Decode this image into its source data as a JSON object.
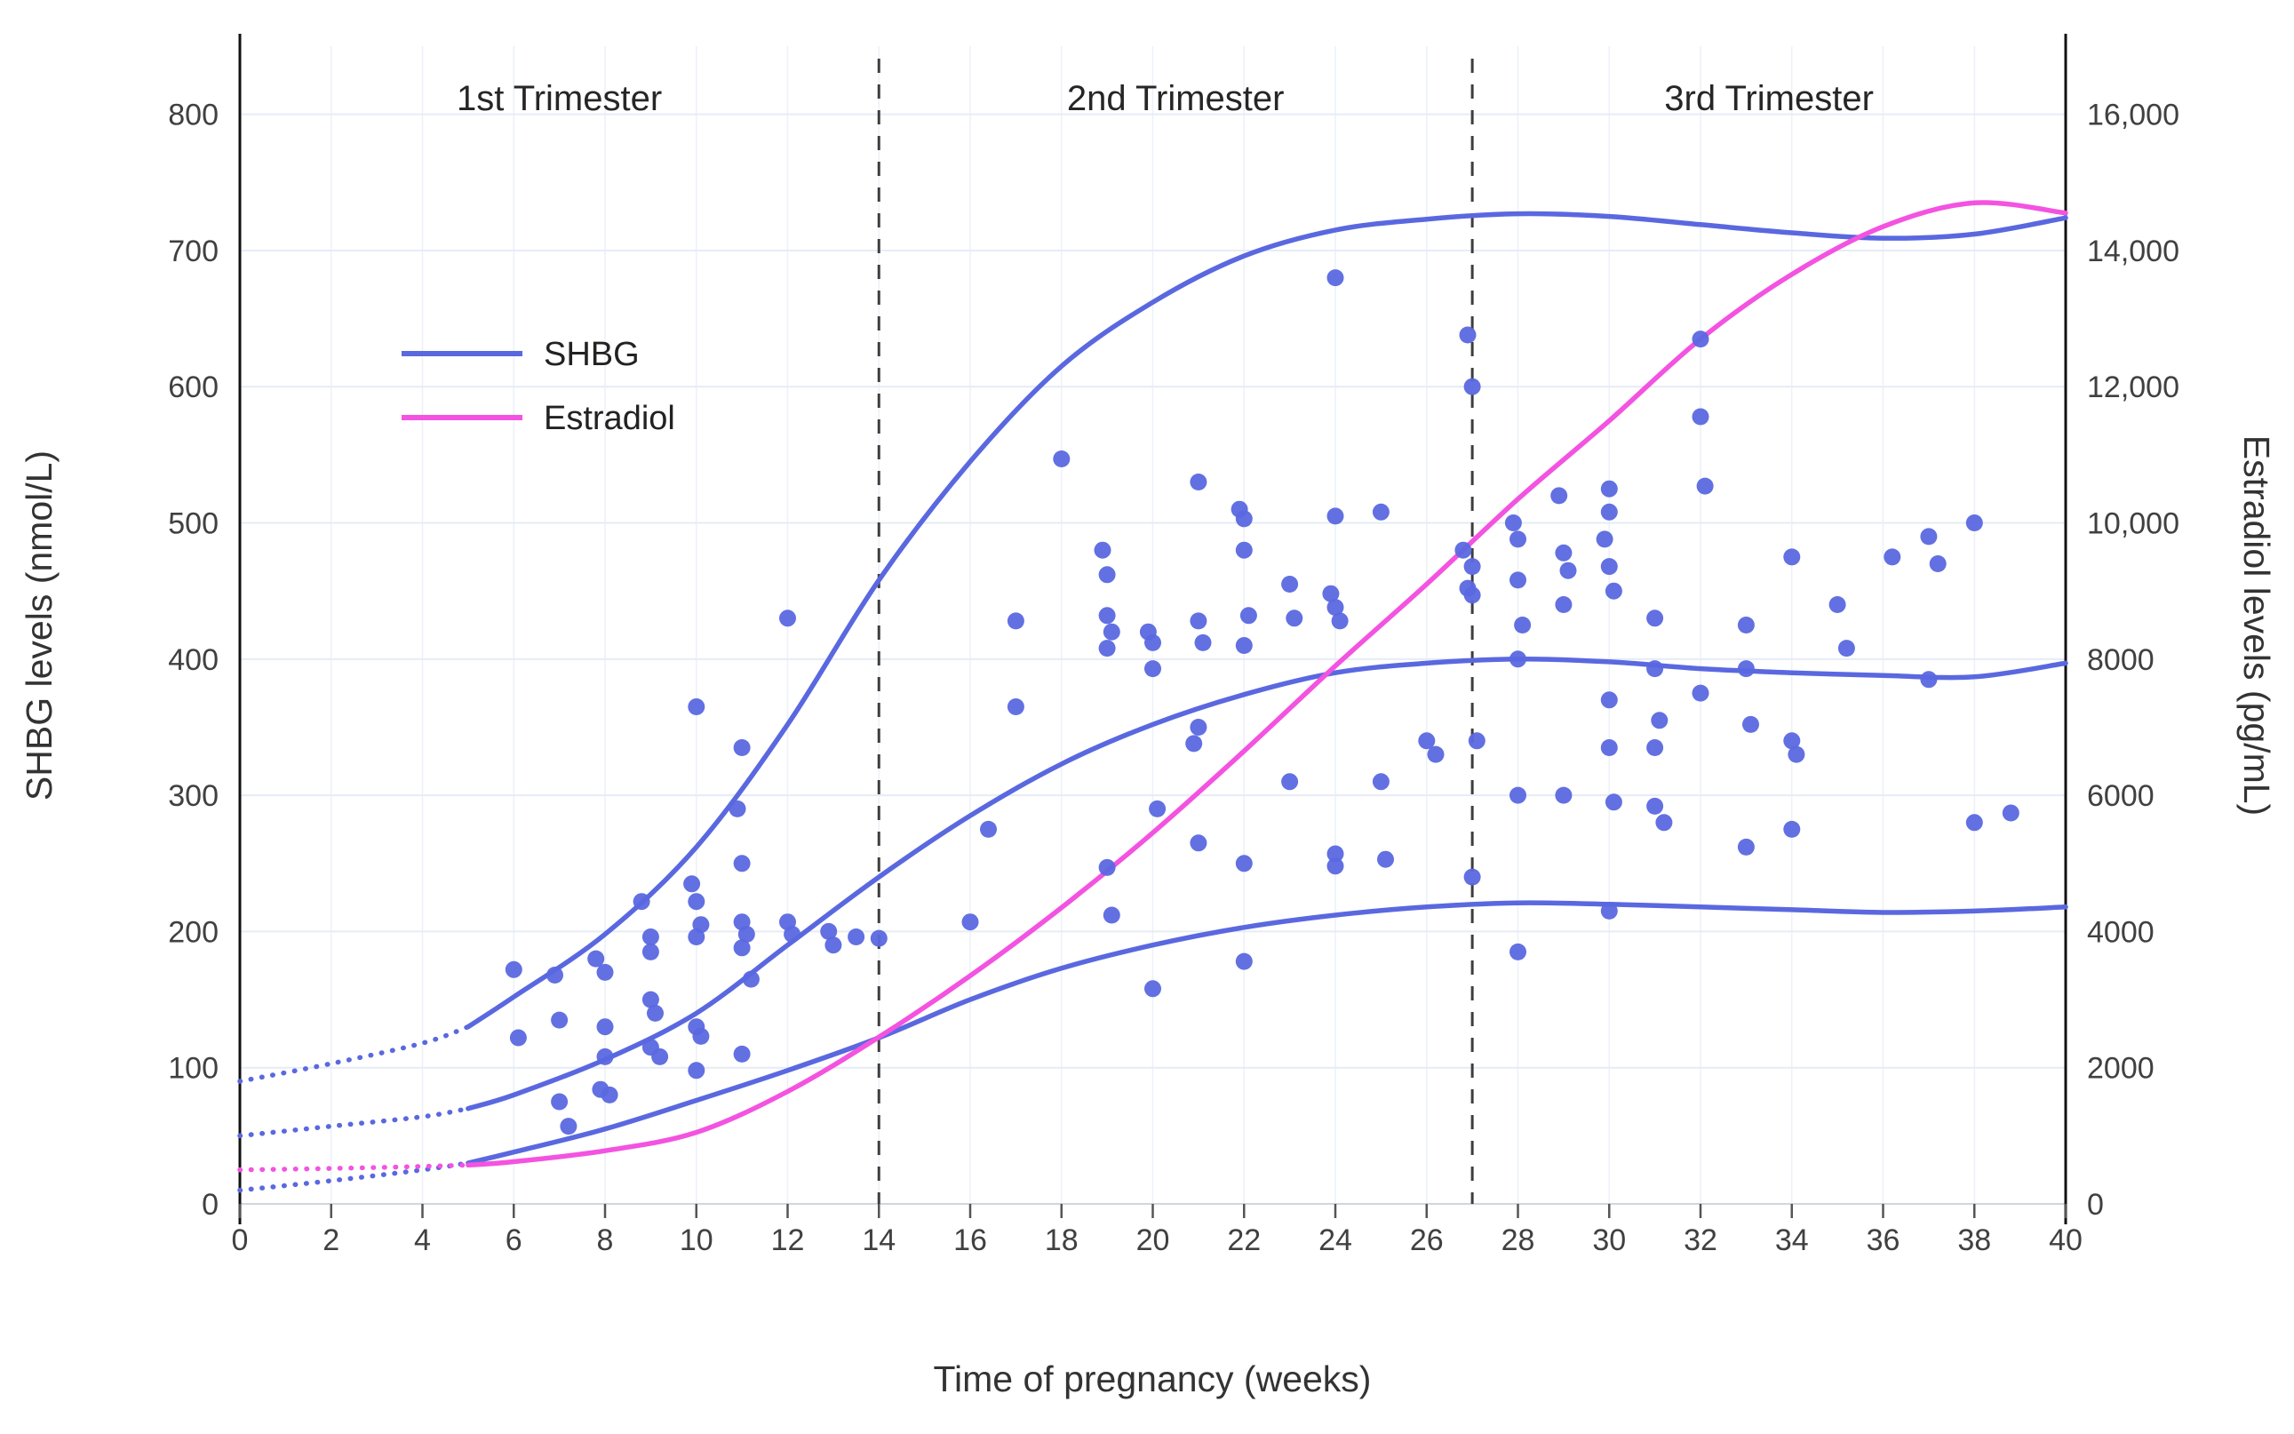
{
  "chart_data": {
    "type": "line+scatter",
    "title": "",
    "xlabel": "Time of pregnancy (weeks)",
    "ylabel_left": "SHBG levels (nmol/L)",
    "ylabel_right": "Estradiol levels (pg/mL)",
    "xlim": [
      0,
      40
    ],
    "ylim_left": [
      0,
      850
    ],
    "ylim_right": [
      0,
      17000
    ],
    "grid": true,
    "x_tick_values": [
      0,
      2,
      4,
      6,
      8,
      10,
      12,
      14,
      16,
      18,
      20,
      22,
      24,
      26,
      28,
      30,
      32,
      34,
      36,
      38,
      40
    ],
    "x_tick_labels": [
      "0",
      "2",
      "4",
      "6",
      "8",
      "10",
      "12",
      "14",
      "16",
      "18",
      "20",
      "22",
      "24",
      "26",
      "28",
      "30",
      "32",
      "34",
      "36",
      "38",
      "40"
    ],
    "y_left_tick_values": [
      0,
      100,
      200,
      300,
      400,
      500,
      600,
      700,
      800
    ],
    "y_left_tick_labels": [
      "0",
      "100",
      "200",
      "300",
      "400",
      "500",
      "600",
      "700",
      "800"
    ],
    "y_right_tick_values": [
      0,
      2000,
      4000,
      6000,
      8000,
      10000,
      12000,
      14000,
      16000
    ],
    "y_right_tick_labels": [
      "0",
      "2000",
      "4000",
      "6000",
      "8000",
      "10,000",
      "12,000",
      "14,000",
      "16,000"
    ],
    "dividers": [
      14,
      27
    ],
    "trimesters": [
      {
        "label": "1st Trimester",
        "start": 0,
        "end": 14
      },
      {
        "label": "2nd Trimester",
        "start": 14,
        "end": 27
      },
      {
        "label": "3rd Trimester",
        "start": 27,
        "end": 40
      }
    ],
    "legend": [
      {
        "label": "SHBG",
        "color": "#5a68e0"
      },
      {
        "label": "Estradiol",
        "color": "#f353e0"
      }
    ],
    "style": {
      "blue": "#5a68e0",
      "magenta": "#f353e0",
      "grid_h": "#e6ecf6",
      "grid_v": "#edf1f8",
      "axis_line": "#111111",
      "baseline": "#cfd6e2",
      "divider": "#3d3d3d",
      "tick_mark": "#555555"
    },
    "series": [
      {
        "name": "SHBG-upper-band",
        "kind": "line",
        "axis": "left",
        "color": "#5a68e0",
        "dotted_until_week": 5,
        "points": [
          [
            0,
            90
          ],
          [
            2,
            103
          ],
          [
            4,
            118
          ],
          [
            5,
            130
          ],
          [
            6,
            152
          ],
          [
            8,
            198
          ],
          [
            10,
            262
          ],
          [
            12,
            352
          ],
          [
            14,
            458
          ],
          [
            16,
            545
          ],
          [
            18,
            615
          ],
          [
            20,
            662
          ],
          [
            22,
            696
          ],
          [
            24,
            715
          ],
          [
            26,
            723
          ],
          [
            28,
            727
          ],
          [
            30,
            725
          ],
          [
            32,
            719
          ],
          [
            34,
            713
          ],
          [
            36,
            709
          ],
          [
            38,
            712
          ],
          [
            40,
            724
          ]
        ]
      },
      {
        "name": "SHBG-median",
        "kind": "line",
        "axis": "left",
        "color": "#5a68e0",
        "dotted_until_week": 5,
        "points": [
          [
            0,
            50
          ],
          [
            2,
            57
          ],
          [
            4,
            64
          ],
          [
            5,
            70
          ],
          [
            6,
            80
          ],
          [
            8,
            106
          ],
          [
            10,
            140
          ],
          [
            12,
            190
          ],
          [
            14,
            240
          ],
          [
            16,
            285
          ],
          [
            18,
            323
          ],
          [
            20,
            352
          ],
          [
            22,
            374
          ],
          [
            24,
            390
          ],
          [
            26,
            397
          ],
          [
            28,
            400
          ],
          [
            30,
            398
          ],
          [
            32,
            393
          ],
          [
            34,
            390
          ],
          [
            36,
            388
          ],
          [
            38,
            387
          ],
          [
            40,
            397
          ]
        ]
      },
      {
        "name": "SHBG-lower-band",
        "kind": "line",
        "axis": "left",
        "color": "#5a68e0",
        "dotted_until_week": 5,
        "points": [
          [
            0,
            10
          ],
          [
            2,
            17
          ],
          [
            4,
            25
          ],
          [
            5,
            30
          ],
          [
            6,
            38
          ],
          [
            8,
            55
          ],
          [
            10,
            76
          ],
          [
            12,
            98
          ],
          [
            14,
            122
          ],
          [
            16,
            150
          ],
          [
            18,
            173
          ],
          [
            20,
            190
          ],
          [
            22,
            203
          ],
          [
            24,
            212
          ],
          [
            26,
            218
          ],
          [
            28,
            221
          ],
          [
            30,
            220
          ],
          [
            32,
            218
          ],
          [
            34,
            216
          ],
          [
            36,
            214
          ],
          [
            38,
            215
          ],
          [
            40,
            218
          ]
        ]
      },
      {
        "name": "Estradiol",
        "kind": "line",
        "axis": "right",
        "color": "#f353e0",
        "dotted_until_week": 5,
        "points": [
          [
            0,
            500
          ],
          [
            2,
            520
          ],
          [
            4,
            550
          ],
          [
            5,
            570
          ],
          [
            6,
            620
          ],
          [
            8,
            780
          ],
          [
            10,
            1050
          ],
          [
            12,
            1650
          ],
          [
            14,
            2450
          ],
          [
            16,
            3350
          ],
          [
            18,
            4350
          ],
          [
            20,
            5450
          ],
          [
            22,
            6650
          ],
          [
            24,
            7900
          ],
          [
            26,
            9100
          ],
          [
            28,
            10350
          ],
          [
            30,
            11500
          ],
          [
            32,
            12700
          ],
          [
            34,
            13650
          ],
          [
            36,
            14350
          ],
          [
            38,
            14700
          ],
          [
            40,
            14550
          ]
        ]
      },
      {
        "name": "SHBG-scatter",
        "kind": "scatter",
        "axis": "left",
        "color": "#5a68e0",
        "points": [
          [
            6,
            172
          ],
          [
            6.1,
            122
          ],
          [
            6.9,
            168
          ],
          [
            7,
            135
          ],
          [
            7,
            75
          ],
          [
            7.2,
            57
          ],
          [
            7.8,
            180
          ],
          [
            8,
            170
          ],
          [
            8,
            130
          ],
          [
            8,
            108
          ],
          [
            7.9,
            84
          ],
          [
            8.1,
            80
          ],
          [
            8.8,
            222
          ],
          [
            9,
            196
          ],
          [
            9,
            185
          ],
          [
            9,
            150
          ],
          [
            9.1,
            140
          ],
          [
            9,
            115
          ],
          [
            9.2,
            108
          ],
          [
            10,
            365
          ],
          [
            9.9,
            235
          ],
          [
            10,
            222
          ],
          [
            10.1,
            205
          ],
          [
            10,
            196
          ],
          [
            10,
            130
          ],
          [
            10.1,
            123
          ],
          [
            10,
            98
          ],
          [
            11,
            335
          ],
          [
            10.9,
            290
          ],
          [
            11,
            250
          ],
          [
            11,
            207
          ],
          [
            11.1,
            198
          ],
          [
            11,
            188
          ],
          [
            11.2,
            165
          ],
          [
            11,
            110
          ],
          [
            12,
            430
          ],
          [
            12,
            207
          ],
          [
            12.1,
            198
          ],
          [
            12.9,
            200
          ],
          [
            13,
            190
          ],
          [
            13.5,
            196
          ],
          [
            14,
            195
          ],
          [
            16,
            207
          ],
          [
            16.4,
            275
          ],
          [
            17,
            428
          ],
          [
            17,
            365
          ],
          [
            18,
            547
          ],
          [
            18.9,
            480
          ],
          [
            19,
            462
          ],
          [
            19,
            432
          ],
          [
            19.1,
            420
          ],
          [
            19,
            408
          ],
          [
            19,
            247
          ],
          [
            19.1,
            212
          ],
          [
            19.9,
            420
          ],
          [
            20,
            412
          ],
          [
            20,
            393
          ],
          [
            20.1,
            290
          ],
          [
            20,
            158
          ],
          [
            21,
            530
          ],
          [
            21,
            428
          ],
          [
            21.1,
            412
          ],
          [
            21,
            350
          ],
          [
            20.9,
            338
          ],
          [
            21,
            265
          ],
          [
            21.9,
            510
          ],
          [
            22,
            503
          ],
          [
            22,
            480
          ],
          [
            22.1,
            432
          ],
          [
            22,
            410
          ],
          [
            22,
            250
          ],
          [
            22,
            178
          ],
          [
            23,
            455
          ],
          [
            23.1,
            430
          ],
          [
            23,
            310
          ],
          [
            24,
            680
          ],
          [
            24,
            505
          ],
          [
            23.9,
            448
          ],
          [
            24,
            438
          ],
          [
            24.1,
            428
          ],
          [
            24,
            257
          ],
          [
            24,
            248
          ],
          [
            25,
            508
          ],
          [
            25,
            310
          ],
          [
            25.1,
            253
          ],
          [
            26,
            340
          ],
          [
            26.2,
            330
          ],
          [
            26.9,
            638
          ],
          [
            27,
            600
          ],
          [
            26.8,
            480
          ],
          [
            27,
            468
          ],
          [
            26.9,
            452
          ],
          [
            27,
            447
          ],
          [
            27.1,
            340
          ],
          [
            27,
            240
          ],
          [
            27.9,
            500
          ],
          [
            28,
            488
          ],
          [
            28,
            458
          ],
          [
            28.1,
            425
          ],
          [
            28,
            400
          ],
          [
            28,
            300
          ],
          [
            28,
            185
          ],
          [
            28.9,
            520
          ],
          [
            29,
            478
          ],
          [
            29.1,
            465
          ],
          [
            29,
            440
          ],
          [
            29,
            300
          ],
          [
            30,
            525
          ],
          [
            30,
            508
          ],
          [
            29.9,
            488
          ],
          [
            30,
            468
          ],
          [
            30.1,
            450
          ],
          [
            30,
            370
          ],
          [
            30,
            335
          ],
          [
            30.1,
            295
          ],
          [
            30,
            215
          ],
          [
            31,
            430
          ],
          [
            31,
            393
          ],
          [
            31.1,
            355
          ],
          [
            31,
            335
          ],
          [
            31,
            292
          ],
          [
            31.2,
            280
          ],
          [
            32,
            635
          ],
          [
            32,
            578
          ],
          [
            32.1,
            527
          ],
          [
            32,
            375
          ],
          [
            33,
            425
          ],
          [
            33,
            393
          ],
          [
            33.1,
            352
          ],
          [
            33,
            262
          ],
          [
            34,
            475
          ],
          [
            34,
            340
          ],
          [
            34.1,
            330
          ],
          [
            34,
            275
          ],
          [
            35,
            440
          ],
          [
            35.2,
            408
          ],
          [
            36.2,
            475
          ],
          [
            37,
            490
          ],
          [
            37.2,
            470
          ],
          [
            37,
            385
          ],
          [
            38,
            500
          ],
          [
            38,
            280
          ],
          [
            38.8,
            287
          ]
        ]
      }
    ]
  }
}
